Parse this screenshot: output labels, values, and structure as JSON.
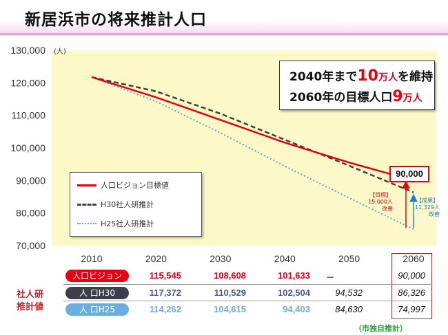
{
  "page": {
    "title": "新居浜市の将来推計人口",
    "unit": "(人)",
    "callout": {
      "line1_pre": "2040年まで",
      "line1_num": "10",
      "line1_unit": "万人",
      "line1_post": "を維持",
      "line2_pre": "2060年の目標人口",
      "line2_num": "9",
      "line2_unit": "万人"
    },
    "target_label": "90,000",
    "annotation_target": [
      "【目標】",
      "15,000人",
      "改善"
    ],
    "annotation_result": [
      "【成果】",
      "11,329人",
      "改善"
    ],
    "table_side_label": [
      "社人研",
      "推計値"
    ],
    "footnote": "（市独自推計）"
  },
  "colors": {
    "vision": "#e60012",
    "h30": "#404040",
    "h25": "#5ba3d9",
    "plot_bg": "#fdf8c8",
    "pill_vision": "#e60012",
    "pill_h30": "#3a3f4a",
    "pill_h25": "#6aaee0"
  },
  "chart_data": {
    "type": "line",
    "x": [
      2010,
      2020,
      2030,
      2040,
      2050,
      2060
    ],
    "ylim": [
      70000,
      130000
    ],
    "yticks": [
      "70,000",
      "80,000",
      "90,000",
      "100,000",
      "110,000",
      "120,000",
      "130,000"
    ],
    "xticks": [
      "2010",
      "2020",
      "2030",
      "2040",
      "2050",
      "2060"
    ],
    "series": [
      {
        "key": "vision",
        "name": "人口ビジョン目標値",
        "table_label": "人口ビジョン",
        "values": [
          121735,
          115545,
          108608,
          101633,
          95500,
          90000
        ],
        "table": [
          "115,545",
          "108,608",
          "101,633",
          "－",
          "90,000"
        ]
      },
      {
        "key": "h30",
        "name": "H30社人研推計",
        "table_label": "人 口H30",
        "values": [
          121735,
          117372,
          110529,
          102504,
          94532,
          86326
        ],
        "table": [
          "117,372",
          "110,529",
          "102,504",
          "94,532",
          "86,326"
        ]
      },
      {
        "key": "h25",
        "name": "H25社人研推計",
        "table_label": "人 口H25",
        "values": [
          121735,
          114262,
          104615,
          94403,
          84630,
          74997
        ],
        "table": [
          "114,262",
          "104,615",
          "94,403",
          "84,630",
          "74,997"
        ]
      }
    ]
  }
}
